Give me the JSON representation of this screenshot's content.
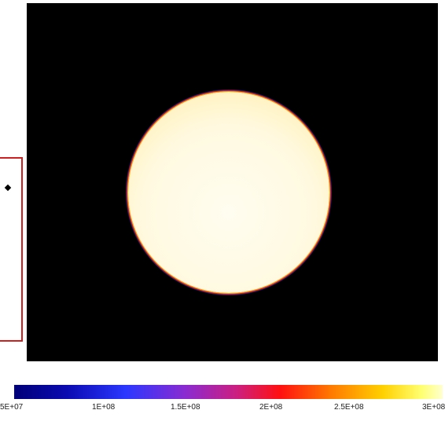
{
  "colorbar": {
    "colormap": "heat",
    "tick_labels": [
      "5E+07",
      "1E+08",
      "1.5E+08",
      "2E+08",
      "2.5E+08",
      "3E+08"
    ]
  },
  "selection": {
    "color": "#d01f1f"
  }
}
